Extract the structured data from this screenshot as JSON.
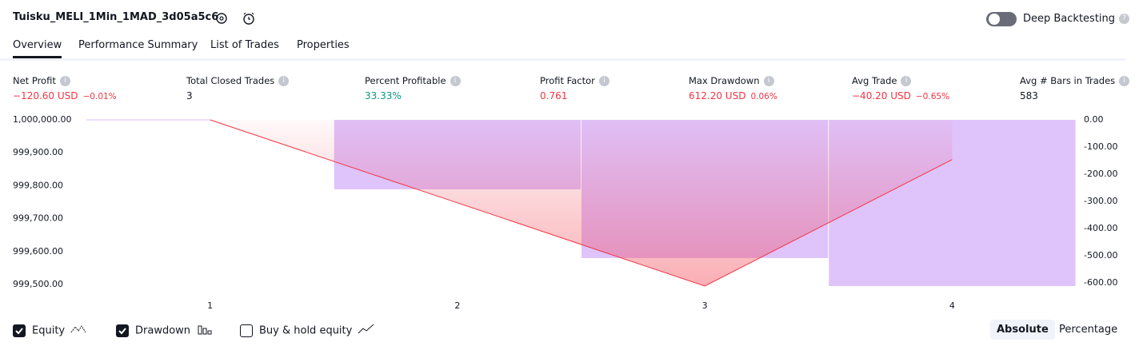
{
  "header": {
    "title": "Tuisku_MELI_1Min_1MAD_3d05a5c6",
    "toggle_label": "Deep Backtesting"
  },
  "tabs": [
    "Overview",
    "Performance Summary",
    "List of Trades",
    "Properties"
  ],
  "metrics": [
    {
      "label": "Net Profit",
      "value": "−120.60 USD",
      "percent": "−0.01%",
      "color": "#f23645"
    },
    {
      "label": "Total Closed Trades",
      "value": "3",
      "color": "#131722"
    },
    {
      "label": "Percent Profitable",
      "value": "33.33%",
      "color": "#089981"
    },
    {
      "label": "Profit Factor",
      "value": "0.761",
      "color": "#f23645"
    },
    {
      "label": "Max Drawdown",
      "value": "612.20 USD",
      "percent": "0.06%",
      "color": "#f23645"
    },
    {
      "label": "Avg Trade",
      "value": "−40.20 USD",
      "percent": "−0.65%",
      "color": "#f23645"
    },
    {
      "label": "Avg # Bars in Trades",
      "value": "583",
      "color": "#131722"
    }
  ],
  "chart_data": {
    "type": "combo",
    "categories": [
      "1",
      "2",
      "3",
      "4"
    ],
    "series": [
      {
        "name": "Equity",
        "type": "line",
        "color": "#f23645",
        "values": [
          1000000,
          999748,
          999495,
          999879.4
        ]
      },
      {
        "name": "Drawdown",
        "type": "bar",
        "axis": "y2",
        "color": "#dcbdfb",
        "values": [
          0,
          -256,
          -509,
          -612.2
        ]
      }
    ],
    "ylim": [
      999495,
      1000000
    ],
    "yticks": [
      {
        "value": 1000000,
        "label": "1,000,000.00"
      },
      {
        "value": 999900,
        "label": "999,900.00"
      },
      {
        "value": 999800,
        "label": "999,800.00"
      },
      {
        "value": 999700,
        "label": "999,700.00"
      },
      {
        "value": 999600,
        "label": "999,600.00"
      },
      {
        "value": 999500,
        "label": "999,500.00"
      }
    ],
    "y2lim": [
      -612.2,
      0
    ],
    "y2ticks": [
      {
        "value": 0,
        "label": "0.00"
      },
      {
        "value": -100,
        "label": "-100.00"
      },
      {
        "value": -200,
        "label": "-200.00"
      },
      {
        "value": -300,
        "label": "-300.00"
      },
      {
        "value": -400,
        "label": "-400.00"
      },
      {
        "value": -500,
        "label": "-500.00"
      },
      {
        "value": -600,
        "label": "-600.00"
      }
    ],
    "grid": false
  },
  "footer": {
    "checkboxes": [
      "Equity",
      "Drawdown",
      "Buy & hold equity"
    ],
    "buttons": [
      "Absolute",
      "Percentage"
    ]
  }
}
